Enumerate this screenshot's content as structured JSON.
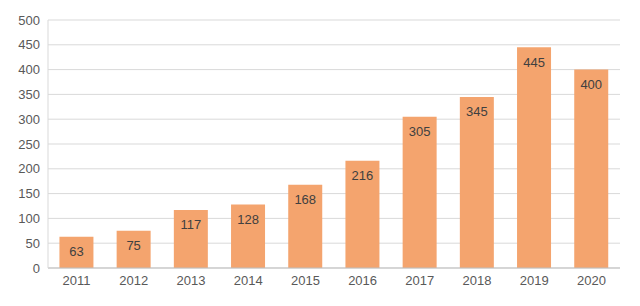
{
  "chart_data": {
    "type": "bar",
    "categories": [
      "2011",
      "2012",
      "2013",
      "2014",
      "2015",
      "2016",
      "2017",
      "2018",
      "2019",
      "2020"
    ],
    "values": [
      63,
      75,
      117,
      128,
      168,
      216,
      305,
      345,
      445,
      400
    ],
    "color": "#f4a46e",
    "ylim": [
      0,
      500
    ],
    "yticks": [
      0,
      50,
      100,
      150,
      200,
      250,
      300,
      350,
      400,
      450,
      500
    ],
    "grid": true,
    "data_labels": true
  }
}
